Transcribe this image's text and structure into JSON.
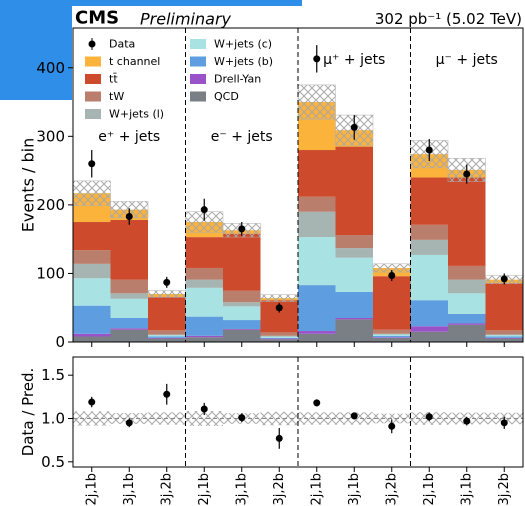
{
  "chart_data": [
    {
      "type": "bar",
      "stacked": true,
      "experiment": "CMS",
      "status": "Preliminary",
      "lumi_label": "302 pb⁻¹ (5.02 TeV)",
      "ylabel": "Events / bin",
      "channel_labels": [
        "e⁺ + jets",
        "e⁻ + jets",
        "μ⁺ + jets",
        "μ⁻ + jets"
      ],
      "series": [
        {
          "name": "QCD",
          "color": "#7a7e85",
          "values": [
            8,
            18,
            5,
            7,
            18,
            4,
            12,
            33,
            6,
            15,
            25,
            5
          ]
        },
        {
          "name": "Drell-Yan",
          "color": "#9a52c9",
          "values": [
            4,
            2,
            1,
            2,
            1,
            1,
            4,
            2,
            1,
            8,
            2,
            1
          ]
        },
        {
          "name": "W+jets (b)",
          "color": "#5e9ee0",
          "values": [
            41,
            15,
            2,
            28,
            13,
            1,
            67,
            38,
            2,
            38,
            14,
            2
          ]
        },
        {
          "name": "W+jets (c)",
          "color": "#a8e2e2",
          "values": [
            40,
            28,
            2,
            42,
            20,
            2,
            70,
            50,
            2,
            66,
            30,
            2
          ]
        },
        {
          "name": "W+jets (l)",
          "color": "#a6b4b2",
          "values": [
            21,
            8,
            1,
            12,
            6,
            1,
            37,
            14,
            1,
            22,
            20,
            1
          ]
        },
        {
          "name": "tW",
          "color": "#b97e6c",
          "values": [
            20,
            20,
            6,
            17,
            17,
            5,
            22,
            19,
            6,
            22,
            20,
            6
          ]
        },
        {
          "name": "tt̄",
          "color": "#cd4a2c",
          "values": [
            41,
            87,
            49,
            45,
            83,
            47,
            68,
            129,
            78,
            69,
            129,
            69
          ]
        },
        {
          "name": "t channel",
          "color": "#fbb33b",
          "values": [
            42,
            15,
            4,
            22,
            5,
            3,
            70,
            24,
            12,
            34,
            11,
            5
          ]
        }
      ],
      "data": {
        "name": "Data",
        "color": "#000000",
        "values": [
          260,
          183,
          87,
          193,
          165,
          50,
          413,
          313,
          97,
          280,
          245,
          92
        ],
        "errors": [
          20,
          12,
          8,
          16,
          10,
          7,
          20,
          18,
          8,
          16,
          14,
          8
        ]
      },
      "mc_uncertainty": [
        18,
        12,
        5,
        15,
        10,
        5,
        25,
        22,
        6,
        20,
        17,
        6
      ],
      "hatch_color": "#b0b0b0",
      "ylim": [
        0,
        458
      ],
      "yticks": [
        0,
        100,
        200,
        300,
        400
      ]
    },
    {
      "type": "errorbar",
      "ylabel": "Data / Pred.",
      "categories": [
        "2j,1b",
        "3j,1b",
        "3j,2b",
        "2j,1b",
        "3j,1b",
        "3j,2b",
        "2j,1b",
        "3j,1b",
        "3j,2b",
        "2j,1b",
        "3j,1b",
        "3j,2b"
      ],
      "values": [
        1.19,
        0.95,
        1.28,
        1.11,
        1.01,
        0.77,
        1.18,
        1.03,
        0.91,
        1.02,
        0.97,
        0.95
      ],
      "errors": [
        0.06,
        0.05,
        0.12,
        0.07,
        0.05,
        0.12,
        0.04,
        0.04,
        0.08,
        0.05,
        0.05,
        0.07
      ],
      "reference_line": 1,
      "ylim": [
        0.44,
        1.71
      ],
      "yticks": [
        {
          "value": 0.5,
          "label": "0.5"
        },
        {
          "value": 1.0,
          "label": "1.0"
        },
        {
          "value": 1.5,
          "label": "1.5"
        }
      ]
    }
  ]
}
